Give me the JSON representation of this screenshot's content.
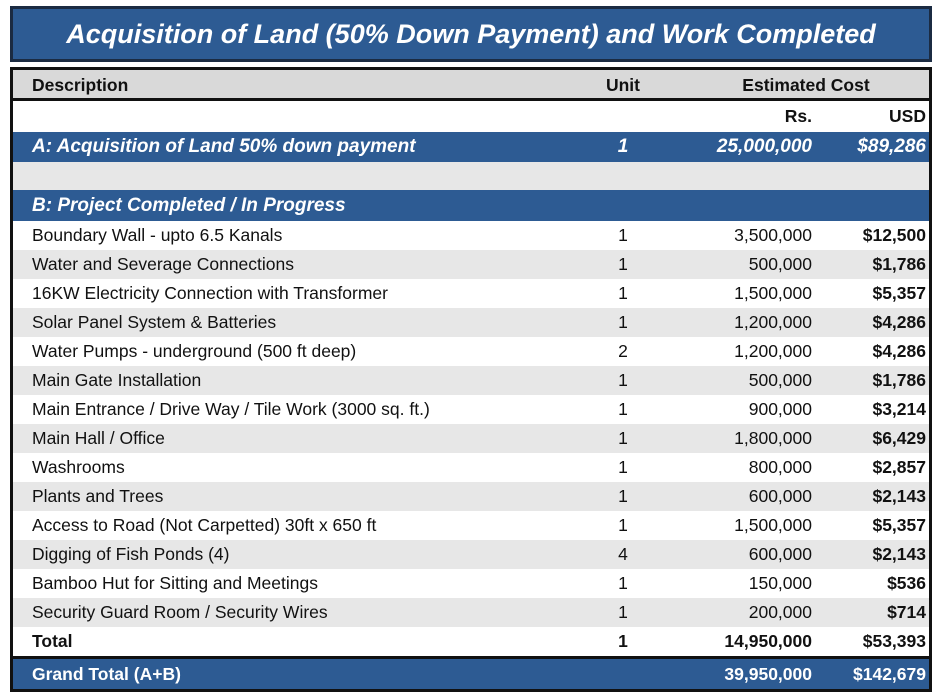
{
  "title": "Acquisition of Land (50% Down Payment) and Work Completed",
  "header": {
    "description": "Description",
    "unit": "Unit",
    "estimated_cost": "Estimated Cost",
    "rs": "Rs.",
    "usd": "USD"
  },
  "section_a": {
    "description": "A:  Acquisition of Land 50% down payment",
    "unit": "1",
    "rs": "25,000,000",
    "usd": "$89,286"
  },
  "section_b": {
    "title": "B: Project Completed / In Progress",
    "rows": [
      [
        "Boundary Wall - upto 6.5 Kanals",
        "1",
        "3,500,000",
        "$12,500"
      ],
      [
        "Water and Severage Connections",
        "1",
        "500,000",
        "$1,786"
      ],
      [
        "16KW Electricity Connection with Transformer",
        "1",
        "1,500,000",
        "$5,357"
      ],
      [
        "Solar Panel System & Batteries",
        "1",
        "1,200,000",
        "$4,286"
      ],
      [
        "Water Pumps - underground (500 ft deep)",
        "2",
        "1,200,000",
        "$4,286"
      ],
      [
        "Main Gate Installation",
        "1",
        "500,000",
        "$1,786"
      ],
      [
        "Main Entrance / Drive Way / Tile Work (3000 sq. ft.)",
        "1",
        "900,000",
        "$3,214"
      ],
      [
        "Main Hall / Office",
        "1",
        "1,800,000",
        "$6,429"
      ],
      [
        "Washrooms",
        "1",
        "800,000",
        "$2,857"
      ],
      [
        "Plants and Trees",
        "1",
        "600,000",
        "$2,143"
      ],
      [
        "Access to Road (Not Carpetted) 30ft x 650 ft",
        "1",
        "1,500,000",
        "$5,357"
      ],
      [
        "Digging of Fish Ponds (4)",
        "4",
        "600,000",
        "$2,143"
      ],
      [
        "Bamboo Hut for Sitting and Meetings",
        "1",
        "150,000",
        "$536"
      ],
      [
        "Security Guard Room / Security Wires",
        "1",
        "200,000",
        "$714"
      ]
    ]
  },
  "total": {
    "description": "Total",
    "unit": "1",
    "rs": "14,950,000",
    "usd": "$53,393"
  },
  "grand_total": {
    "description": "Grand Total (A+B)",
    "rs": "39,950,000",
    "usd": "$142,679"
  }
}
